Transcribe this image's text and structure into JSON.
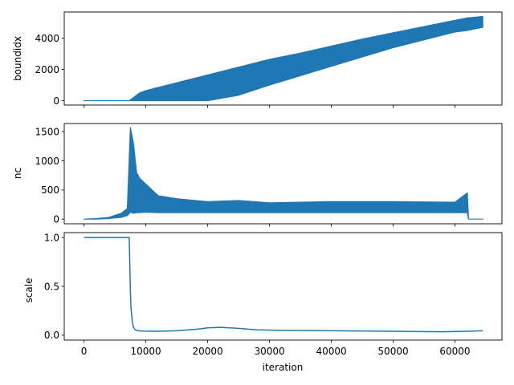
{
  "chart_data": [
    {
      "type": "line",
      "ylabel": "boundidx",
      "xlim": [
        -3200,
        67600
      ],
      "ylim": [
        -280,
        5680
      ],
      "yticks": [
        0,
        2000,
        4000
      ],
      "xticks": [
        0,
        10000,
        20000,
        30000,
        40000,
        50000,
        60000
      ],
      "show_xticklabels": false,
      "color": "#1f77b4",
      "series": [
        {
          "x": [
            0,
            7300,
            8000,
            9000,
            10000,
            12000,
            15000,
            20000,
            25000,
            30000,
            35000,
            40000,
            45000,
            50000,
            55000,
            60000,
            62000,
            64500
          ],
          "upper": [
            0,
            0,
            200,
            500,
            650,
            850,
            1150,
            1650,
            2150,
            2650,
            3050,
            3500,
            3950,
            4350,
            4750,
            5150,
            5300,
            5400
          ],
          "lower": [
            0,
            0,
            0,
            0,
            0,
            0,
            0,
            0,
            350,
            1000,
            1600,
            2200,
            2800,
            3400,
            3900,
            4400,
            4500,
            4700
          ]
        }
      ]
    },
    {
      "type": "line",
      "ylabel": "nc",
      "xlim": [
        -3200,
        67600
      ],
      "ylim": [
        -80,
        1640
      ],
      "yticks": [
        0,
        500,
        1000,
        1500
      ],
      "xticks": [
        0,
        10000,
        20000,
        30000,
        40000,
        50000,
        60000
      ],
      "show_xticklabels": false,
      "color": "#1f77b4",
      "series": [
        {
          "x": [
            0,
            2000,
            4000,
            6000,
            7000,
            7500,
            8000,
            8500,
            9000,
            10000,
            12000,
            15000,
            20000,
            25000,
            30000,
            40000,
            50000,
            60000,
            62000,
            62200,
            64500
          ],
          "upper": [
            0,
            10,
            30,
            100,
            180,
            1570,
            1300,
            800,
            700,
            600,
            400,
            350,
            300,
            320,
            280,
            300,
            300,
            290,
            450,
            0,
            0
          ],
          "lower": [
            0,
            0,
            10,
            30,
            60,
            120,
            100,
            110,
            110,
            120,
            110,
            110,
            110,
            110,
            110,
            110,
            110,
            110,
            110,
            0,
            0
          ]
        }
      ]
    },
    {
      "type": "line",
      "ylabel": "scale",
      "xlabel": "iteration",
      "xlim": [
        -3200,
        67600
      ],
      "ylim": [
        -0.05,
        1.05
      ],
      "yticks": [
        0.0,
        0.5,
        1.0
      ],
      "xticks": [
        0,
        10000,
        20000,
        30000,
        40000,
        50000,
        60000
      ],
      "show_xticklabels": true,
      "color": "#1f77b4",
      "series": [
        {
          "x": [
            0,
            7300,
            7400,
            7500,
            7600,
            7800,
            8000,
            8300,
            8700,
            9500,
            12000,
            15000,
            18000,
            20000,
            22000,
            25000,
            28000,
            32000,
            40000,
            50000,
            58000,
            62000,
            64500
          ],
          "y": [
            1.0,
            1.0,
            0.75,
            0.45,
            0.28,
            0.14,
            0.08,
            0.055,
            0.045,
            0.042,
            0.04,
            0.045,
            0.06,
            0.075,
            0.08,
            0.07,
            0.055,
            0.05,
            0.045,
            0.04,
            0.035,
            0.04,
            0.045
          ]
        }
      ]
    }
  ]
}
